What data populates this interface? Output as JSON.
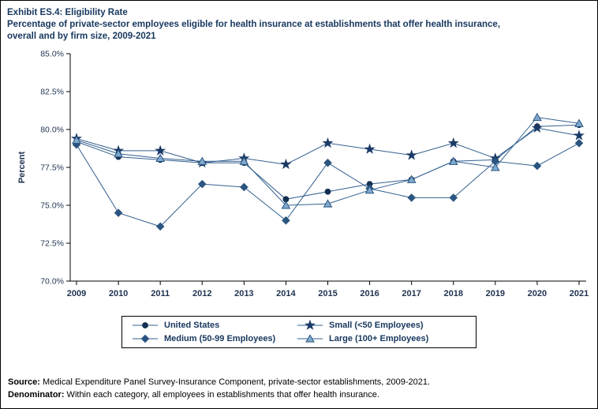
{
  "header": {
    "exhibit_line": "Exhibit ES.4: Eligibility Rate",
    "subtitle_line1": "Percentage of private-sector employees eligible for health insurance at establishments that offer health insurance,",
    "subtitle_line2": "overall and by firm size, 2009-2021"
  },
  "chart_data": {
    "type": "line",
    "title": "Exhibit ES.4: Eligibility Rate",
    "subtitle": "Percentage of private-sector employees eligible for health insurance at establishments that offer health insurance, overall and by firm size, 2009-2021",
    "xlabel": "",
    "ylabel": "Percent",
    "ylim": [
      70.0,
      85.0
    ],
    "yticks": [
      70.0,
      72.5,
      75.0,
      77.5,
      80.0,
      82.5,
      85.0
    ],
    "ytick_suffix": "%",
    "grid": false,
    "legend_position": "bottom",
    "categories": [
      "2009",
      "2010",
      "2011",
      "2012",
      "2013",
      "2014",
      "2015",
      "2016",
      "2017",
      "2018",
      "2019",
      "2020",
      "2021"
    ],
    "series": [
      {
        "name": "United States",
        "marker": "circle",
        "line_color": "#33608f",
        "marker_color": "#132f52",
        "values": [
          79.2,
          78.2,
          78.0,
          77.8,
          77.8,
          75.4,
          75.9,
          76.4,
          76.7,
          77.9,
          78.0,
          80.2,
          80.3
        ]
      },
      {
        "name": "Small (<50 Employees)",
        "marker": "star",
        "line_color": "#33608f",
        "marker_color": "#1b3a66",
        "values": [
          79.4,
          78.6,
          78.6,
          77.8,
          78.1,
          77.7,
          79.1,
          78.7,
          78.3,
          79.1,
          78.1,
          80.1,
          79.6
        ]
      },
      {
        "name": "Medium (50-99 Employees)",
        "marker": "diamond",
        "line_color": "#33608f",
        "marker_color": "#2a5580",
        "values": [
          79.0,
          74.5,
          73.6,
          76.4,
          76.2,
          74.0,
          77.8,
          76.1,
          75.5,
          75.5,
          77.9,
          77.6,
          79.1
        ]
      },
      {
        "name": "Large (100+ Employees)",
        "marker": "triangle",
        "line_color": "#33608f",
        "marker_color": "#2a5580",
        "marker_fill": "#7fa9cd",
        "values": [
          79.3,
          78.4,
          78.1,
          77.9,
          77.9,
          75.0,
          75.1,
          76.0,
          76.7,
          77.9,
          77.5,
          80.8,
          80.4
        ]
      }
    ]
  },
  "footer": {
    "source_label": "Source:",
    "source_text": " Medical Expenditure Panel Survey-Insurance Component, private-sector establishments, 2009-2021.",
    "denominator_label": "Denominator:",
    "denominator_text": " Within each category, all employees in establishments that offer health insurance."
  },
  "colors": {
    "title_text": "#17375e",
    "axis_line": "#000000",
    "tick_text": "#1f3250"
  }
}
